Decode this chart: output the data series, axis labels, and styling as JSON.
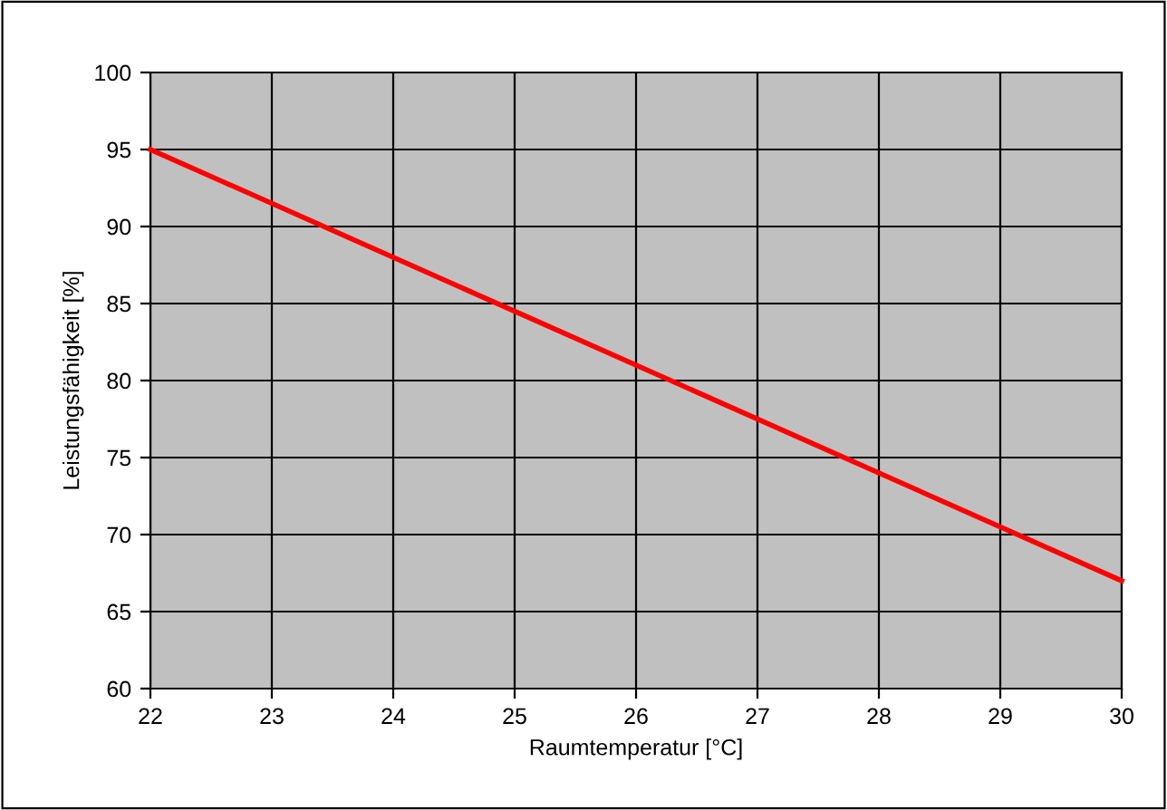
{
  "chart_data": {
    "type": "line",
    "xlabel": "Raumtemperatur [°C]",
    "ylabel": "Leistungsfähigkeit [%]",
    "x": [
      22,
      30
    ],
    "series": [
      {
        "color": "#ff0000",
        "values": [
          95,
          67
        ]
      }
    ],
    "xlim": [
      22,
      30
    ],
    "xticks": [
      22,
      23,
      24,
      25,
      26,
      27,
      28,
      29,
      30
    ],
    "ylim": [
      60,
      100
    ],
    "yticks": [
      60,
      65,
      70,
      75,
      80,
      85,
      90,
      95,
      100
    ],
    "grid": true,
    "legend": false,
    "marker": "none",
    "line_style": "solid"
  }
}
